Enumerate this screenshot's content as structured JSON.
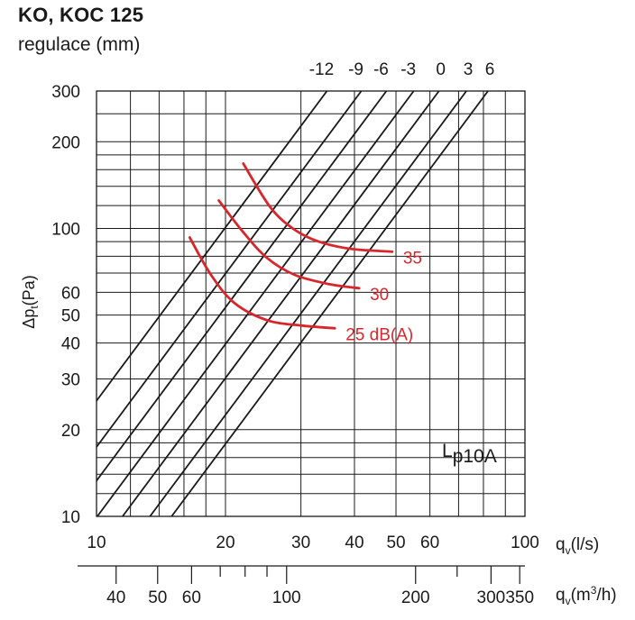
{
  "header": {
    "title": "KO, KOC 125",
    "subtitle": "regulace (mm)"
  },
  "chart_data": {
    "type": "line",
    "scale": "log-log",
    "title": "KO, KOC 125",
    "subtitle": "regulace (mm)",
    "ylabel": "Δpt(Pa)",
    "ylabel_main": "Δp",
    "ylabel_sub": "t",
    "ylabel_unit": "(Pa)",
    "xlabel": "qv(l/s)",
    "xlabel_main": "q",
    "xlabel_sub": "v",
    "xlabel_unit": "(l/s)",
    "x2label": "qv(m3/h)",
    "x2label_main": "q",
    "x2label_sub": "v",
    "x2label_unit_pre": "(m",
    "x2label_unit_sup": "3",
    "x2label_unit_post": "/h)",
    "xlim": [
      10,
      100
    ],
    "ylim": [
      10,
      300
    ],
    "x_tick_labels": [
      {
        "value": 10,
        "label": "10"
      },
      {
        "value": 20,
        "label": "20"
      },
      {
        "value": 30,
        "label": "30"
      },
      {
        "value": 40,
        "label": "40"
      },
      {
        "value": 50,
        "label": "50"
      },
      {
        "value": 60,
        "label": "60"
      },
      {
        "value": 100,
        "label": "100"
      }
    ],
    "y_tick_labels": [
      {
        "value": 10,
        "label": "10"
      },
      {
        "value": 20,
        "label": "20"
      },
      {
        "value": 30,
        "label": "30"
      },
      {
        "value": 40,
        "label": "40"
      },
      {
        "value": 50,
        "label": "50"
      },
      {
        "value": 60,
        "label": "60"
      },
      {
        "value": 100,
        "label": "100"
      },
      {
        "value": 200,
        "label": "200"
      },
      {
        "value": 300,
        "label": "300"
      }
    ],
    "x2_tick_labels": [
      {
        "value": 40,
        "label": "40"
      },
      {
        "value": 50,
        "label": "50"
      },
      {
        "value": 60,
        "label": "60"
      },
      {
        "value": 100,
        "label": "100"
      },
      {
        "value": 200,
        "label": "200"
      },
      {
        "value": 300,
        "label": "300"
      },
      {
        "value": 350,
        "label": "350"
      }
    ],
    "series_label": "regulace (mm)",
    "lines": [
      {
        "label": "-12",
        "x_at_top": 34.5
      },
      {
        "label": "-9",
        "x_at_top": 41.5
      },
      {
        "label": "-6",
        "x_at_top": 47.5
      },
      {
        "label": "-3",
        "x_at_top": 55.0
      },
      {
        "label": "0",
        "x_at_top": 63.0
      },
      {
        "label": "3",
        "x_at_top": 73.0
      },
      {
        "label": "6",
        "x_at_top": 82.0
      }
    ],
    "line_slope": 2,
    "noise_label": "Lp10A",
    "noise_label_pre": "L",
    "noise_label_sub": "p10A",
    "noise_curves": [
      {
        "label": "35",
        "color": "#d7262c",
        "points": [
          [
            22,
            168
          ],
          [
            25.5,
            118
          ],
          [
            29,
            99
          ],
          [
            33,
            90
          ],
          [
            39,
            85
          ],
          [
            49,
            83
          ]
        ]
      },
      {
        "label": "30",
        "color": "#d7262c",
        "points": [
          [
            19.3,
            125
          ],
          [
            22,
            97
          ],
          [
            25,
            79
          ],
          [
            29,
            69
          ],
          [
            35,
            64
          ],
          [
            41,
            62
          ]
        ]
      },
      {
        "label": "25 dB(A)",
        "color": "#d7262c",
        "points": [
          [
            16.5,
            93
          ],
          [
            18.5,
            69
          ],
          [
            21,
            55
          ],
          [
            25,
            48
          ],
          [
            30,
            46
          ],
          [
            36,
            45
          ]
        ]
      }
    ]
  }
}
